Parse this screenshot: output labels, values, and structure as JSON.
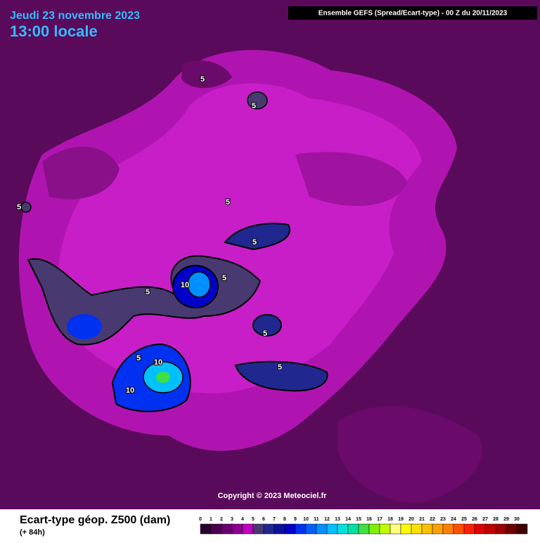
{
  "header": {
    "date": "Jeudi 23 novembre 2023",
    "time": "13:00 locale",
    "model": "Ensemble GEFS  (Spread/Ecart-type) - 00 Z du 20/11/2023"
  },
  "map": {
    "contour_labels": [
      "5",
      "5",
      "5",
      "5",
      "5",
      "5",
      "5",
      "10",
      "5",
      "5",
      "5",
      "10",
      "10"
    ],
    "copyright": "Copyright © 2023 Meteociel.fr"
  },
  "footer": {
    "title": "Ecart-type géop. Z500 (dam)",
    "lead": "(+ 84h)"
  },
  "colorbar": {
    "labels": [
      0,
      1,
      2,
      3,
      4,
      5,
      6,
      7,
      8,
      9,
      10,
      11,
      12,
      13,
      14,
      15,
      16,
      17,
      18,
      19,
      20,
      21,
      22,
      23,
      24,
      25,
      26,
      27,
      28,
      29,
      30
    ],
    "colors": [
      "#2a0030",
      "#4a0050",
      "#6a0070",
      "#900090",
      "#c000c0",
      "#483a70",
      "#202890",
      "#1010a0",
      "#0000c8",
      "#0030f0",
      "#0060ff",
      "#0090ff",
      "#00c0ff",
      "#00e0e0",
      "#00e0a0",
      "#40e040",
      "#80f000",
      "#c0ff00",
      "#ffff80",
      "#ffff00",
      "#ffe000",
      "#ffc000",
      "#ffa000",
      "#ff8000",
      "#ff5000",
      "#ff2000",
      "#e00000",
      "#c00000",
      "#a00000",
      "#700000",
      "#400000"
    ]
  }
}
